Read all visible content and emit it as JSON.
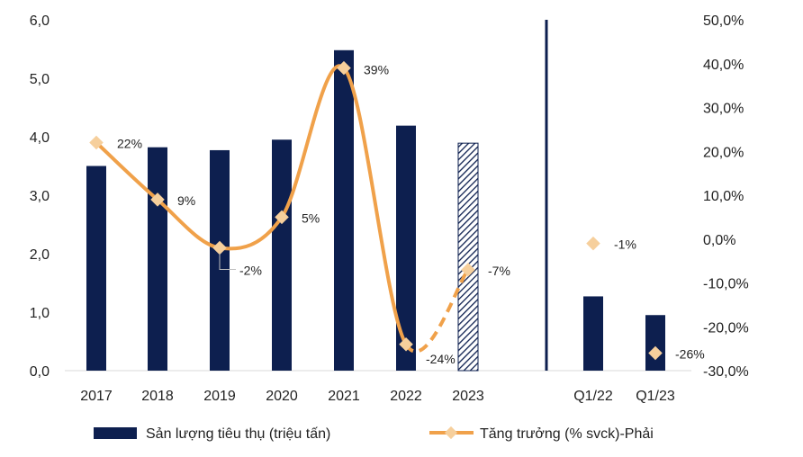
{
  "chart_data": {
    "type": "bar",
    "categories": [
      "2017",
      "2018",
      "2019",
      "2020",
      "2021",
      "2022",
      "2023",
      "Q1/22",
      "Q1/23"
    ],
    "series": [
      {
        "name": "Sản lượng tiêu thụ (triệu tấn)",
        "type": "bar",
        "axis": "left",
        "values": [
          3.5,
          3.82,
          3.77,
          3.95,
          5.48,
          4.19,
          3.89,
          1.27,
          0.95
        ],
        "forecast_categories": [
          "2023"
        ]
      },
      {
        "name": "Tăng trưởng (% svck)-Phải",
        "type": "line",
        "axis": "right",
        "values": [
          22,
          9,
          -2,
          5,
          39,
          -24,
          -7,
          -1,
          -26
        ],
        "labels": [
          "22%",
          "9%",
          "-2%",
          "5%",
          "39%",
          "-24%",
          "-7%",
          "-1%",
          "-26%"
        ],
        "forecast_categories": [
          "2023"
        ],
        "unconnected_categories": [
          "Q1/22",
          "Q1/23"
        ]
      }
    ],
    "y_left": {
      "range": [
        0,
        6
      ],
      "ticks": [
        "0,0",
        "1,0",
        "2,0",
        "3,0",
        "4,0",
        "5,0",
        "6,0"
      ]
    },
    "y_right": {
      "range": [
        -30,
        50
      ],
      "ticks": [
        "-30,0%",
        "-20,0%",
        "-10,0%",
        "0,0%",
        "10,0%",
        "20,0%",
        "30,0%",
        "40,0%",
        "50,0%"
      ]
    },
    "grid": false,
    "legend_position": "bottom",
    "colors": {
      "bar": "#0d1f4f",
      "line": "#f0a14a",
      "marker": "#f6cf9c",
      "divider": "#0d1f4f"
    }
  }
}
